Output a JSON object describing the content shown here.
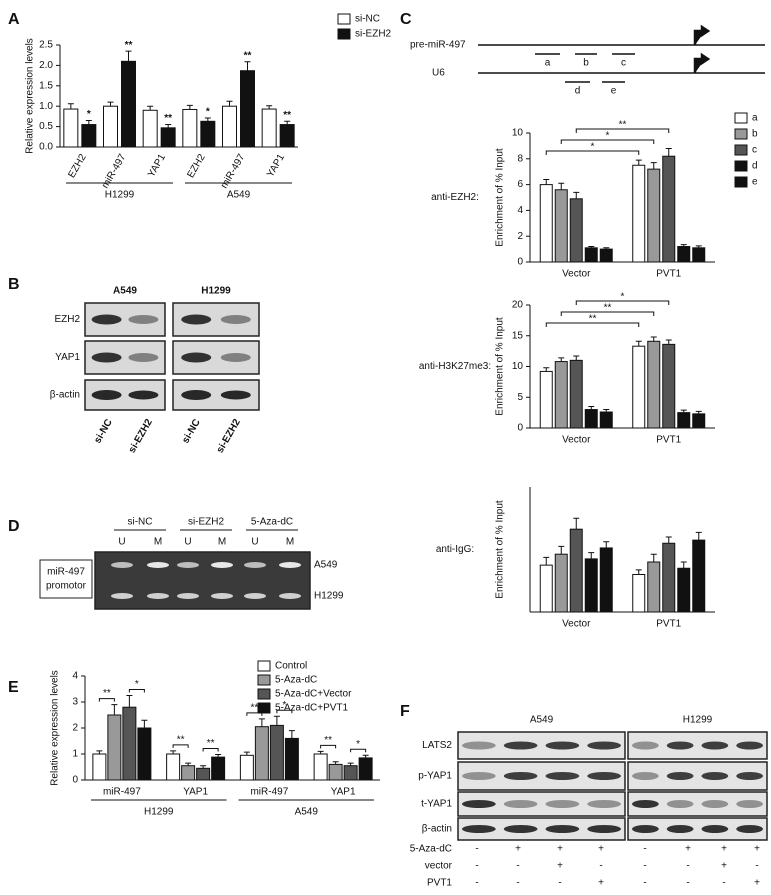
{
  "panel_labels": [
    "A",
    "B",
    "C",
    "D",
    "E",
    "F"
  ],
  "chart_data": [
    {
      "type": "bar",
      "ylabel": "Relative expression levels",
      "categories": [
        "EZH2",
        "miR-497",
        "YAP1",
        "EZH2",
        "miR-497",
        "YAP1"
      ],
      "groups": [
        "H1299",
        "A549"
      ],
      "ylim": [
        0,
        2.5
      ],
      "yticks": [
        {
          "value": 0,
          "label": "0.0"
        },
        0.5,
        {
          "value": 1,
          "label": "1.0"
        },
        1.5,
        {
          "value": 2,
          "label": "2.0"
        },
        2.5
      ],
      "series": [
        {
          "name": "si-NC",
          "color": "#ffffff",
          "values": [
            0.93,
            1.0,
            0.9,
            0.92,
            1.0,
            0.93
          ],
          "errors": [
            0.13,
            0.1,
            0.1,
            0.1,
            0.12,
            0.08
          ]
        },
        {
          "name": "si-EZH2",
          "color": "#111111",
          "values": [
            0.55,
            2.1,
            0.47,
            0.63,
            1.87,
            0.55
          ],
          "errors": [
            0.1,
            0.25,
            0.08,
            0.08,
            0.22,
            0.08
          ],
          "stars": [
            "*",
            "**",
            "**",
            "*",
            "**",
            "**"
          ]
        }
      ]
    },
    {
      "type": "bar",
      "label": "anti-EZH2:",
      "ylabel": "Enrichment of % Input",
      "categories": [
        "Vector",
        "PVT1"
      ],
      "ylim": [
        0,
        10
      ],
      "yticks": [
        0,
        2,
        4,
        6,
        8,
        10
      ],
      "significance": [
        "**",
        "*",
        "*"
      ],
      "series": [
        {
          "name": "a",
          "color": "#ffffff",
          "values": [
            6.0,
            7.5
          ],
          "errors": [
            0.4,
            0.4
          ]
        },
        {
          "name": "b",
          "color": "#999999",
          "values": [
            5.6,
            7.2
          ],
          "errors": [
            0.5,
            0.5
          ]
        },
        {
          "name": "c",
          "color": "#555555",
          "values": [
            4.9,
            8.2
          ],
          "errors": [
            0.5,
            0.6
          ]
        },
        {
          "name": "d",
          "color": "#111111",
          "values": [
            1.1,
            1.2
          ],
          "errors": [
            0.1,
            0.15
          ]
        },
        {
          "name": "e",
          "color": "#111111",
          "values": [
            1.0,
            1.1
          ],
          "errors": [
            0.1,
            0.15
          ]
        }
      ]
    },
    {
      "type": "bar",
      "label": "anti-H3K27me3:",
      "ylabel": "Enrichment of % Input",
      "categories": [
        "Vector",
        "PVT1"
      ],
      "ylim": [
        0,
        20
      ],
      "yticks": [
        0,
        5,
        10,
        15,
        20
      ],
      "significance": [
        "*",
        "**",
        "**"
      ],
      "series": [
        {
          "color": "#ffffff",
          "values": [
            9.2,
            13.3
          ],
          "errors": [
            0.6,
            0.8
          ]
        },
        {
          "color": "#999999",
          "values": [
            10.8,
            14.1
          ],
          "errors": [
            0.6,
            0.7
          ]
        },
        {
          "color": "#555555",
          "values": [
            11.0,
            13.6
          ],
          "errors": [
            0.7,
            0.7
          ]
        },
        {
          "color": "#111111",
          "values": [
            3.0,
            2.5
          ],
          "errors": [
            0.5,
            0.4
          ]
        },
        {
          "color": "#111111",
          "values": [
            2.6,
            2.3
          ],
          "errors": [
            0.4,
            0.4
          ]
        }
      ]
    },
    {
      "type": "bar",
      "label": "anti-IgG:",
      "ylabel": "Enrichment of % Input",
      "categories": [
        "Vector",
        "PVT1"
      ],
      "ylim": [
        0,
        8
      ],
      "series": [
        {
          "color": "#ffffff",
          "values": [
            3.0,
            2.4
          ],
          "errors": [
            0.5,
            0.3
          ]
        },
        {
          "color": "#999999",
          "values": [
            3.7,
            3.2
          ],
          "errors": [
            0.5,
            0.5
          ]
        },
        {
          "color": "#555555",
          "values": [
            5.3,
            4.4
          ],
          "errors": [
            0.7,
            0.4
          ]
        },
        {
          "color": "#111111",
          "values": [
            3.4,
            2.8
          ],
          "errors": [
            0.4,
            0.4
          ]
        },
        {
          "color": "#111111",
          "values": [
            4.1,
            4.6
          ],
          "errors": [
            0.4,
            0.5
          ]
        }
      ]
    },
    {
      "type": "bar",
      "ylabel": "Relative expression levels",
      "categories": [
        "miR-497",
        "YAP1",
        "miR-497",
        "YAP1"
      ],
      "groups": [
        "H1299",
        "A549"
      ],
      "ylim": [
        0,
        4
      ],
      "yticks": [
        0,
        1,
        2,
        3,
        4
      ],
      "significance": [
        [
          "**",
          "*"
        ],
        [
          "**",
          "**"
        ],
        [
          "**",
          "*"
        ],
        [
          "**",
          "*"
        ]
      ],
      "series": [
        {
          "name": "Control",
          "color": "#ffffff",
          "values": [
            1.0,
            1.0,
            0.95,
            1.0
          ],
          "errors": [
            0.12,
            0.12,
            0.12,
            0.1
          ]
        },
        {
          "name": "5-Aza-dC",
          "color": "#999999",
          "values": [
            2.5,
            0.55,
            2.05,
            0.6
          ],
          "errors": [
            0.4,
            0.1,
            0.3,
            0.1
          ]
        },
        {
          "name": "5-Aza-dC+Vector",
          "color": "#555555",
          "values": [
            2.8,
            0.45,
            2.1,
            0.55
          ],
          "errors": [
            0.45,
            0.1,
            0.35,
            0.1
          ]
        },
        {
          "name": "5-Aza-dC+PVT1",
          "color": "#111111",
          "values": [
            2.0,
            0.88,
            1.6,
            0.85
          ],
          "errors": [
            0.3,
            0.1,
            0.3,
            0.1
          ]
        }
      ]
    }
  ],
  "diagram_c": {
    "tracks": [
      "pre-miR-497",
      "U6"
    ],
    "primers": [
      "a",
      "b",
      "c",
      "d",
      "e"
    ]
  },
  "blot_b": {
    "columns": [
      "A549",
      "H1299"
    ],
    "rows": [
      "EZH2",
      "YAP1",
      "β-actin"
    ],
    "lanes": [
      "si-NC",
      "si-EZH2",
      "si-NC",
      "si-EZH2"
    ]
  },
  "gel_d": {
    "treatments": [
      "si-NC",
      "si-EZH2",
      "5-Aza-dC"
    ],
    "lanes": [
      "U",
      "M",
      "U",
      "M",
      "U",
      "M"
    ],
    "rows": [
      "A549",
      "H1299"
    ],
    "side_label": [
      "miR-497",
      "promotor"
    ]
  },
  "blot_f": {
    "columns": [
      "A549",
      "H1299"
    ],
    "rows": [
      "LATS2",
      "p-YAP1",
      "t-YAP1",
      "β-actin"
    ],
    "conditions": [
      {
        "name": "5-Aza-dC",
        "marks": [
          "-",
          "+",
          "+",
          "+",
          "-",
          "+",
          "+",
          "+"
        ]
      },
      {
        "name": "vector",
        "marks": [
          "-",
          "-",
          "+",
          "-",
          "-",
          "-",
          "+",
          "-"
        ]
      },
      {
        "name": "PVT1",
        "marks": [
          "-",
          "-",
          "-",
          "+",
          "-",
          "-",
          "-",
          "+"
        ]
      }
    ]
  }
}
